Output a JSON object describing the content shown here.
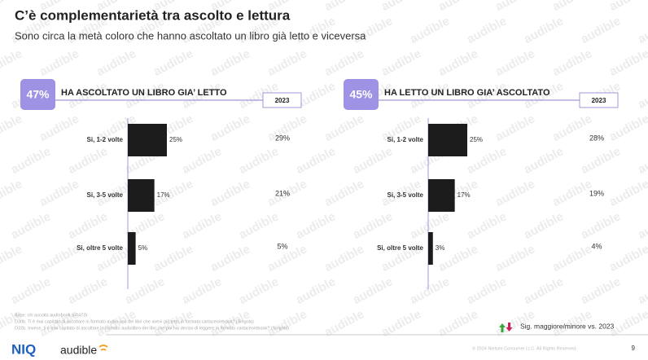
{
  "title": "C’è complementarietà tra ascolto e lettura",
  "subtitle": "Sono circa la metà coloro che hanno ascoltato un libro già letto e viceversa",
  "watermark": "audible",
  "chart_data": [
    {
      "type": "bar",
      "badge": "47%",
      "title": "HA ASCOLTATO UN LIBRO GIA’ LETTO",
      "categories": [
        "Si, 1-2 volte",
        "Si, 3-5 volte",
        "Si, oltre 5 volte"
      ],
      "values": [
        25,
        17,
        5
      ],
      "value_labels": [
        "25%",
        "17%",
        "5%"
      ],
      "color": "#1c1c1c",
      "comparison_header": "2023",
      "comparison_values": [
        "29%",
        "21%",
        "5%"
      ]
    },
    {
      "type": "bar",
      "badge": "45%",
      "title": "HA LETTO UN LIBRO GIA’ ASCOLTATO",
      "categories": [
        "Si, 1-2 volte",
        "Si, 3-5 volte",
        "Si, oltre 5 volte"
      ],
      "values": [
        25,
        17,
        3
      ],
      "value_labels": [
        "25%",
        "17%",
        "3%"
      ],
      "color": "#1c1c1c",
      "comparison_header": "2023",
      "comparison_values": [
        "28%",
        "19%",
        "4%"
      ]
    }
  ],
  "footnotes": [
    "Base: chi ascolta audiobook (n=473)",
    "D30b. Ti è mai capitato di ascoltare in formato audio uno dei libri che avevi già letto in formato cartaceo/ebook? (Singola)",
    "D32b. Invece, ti è mai capitato di ascoltare in formato audiolibro dei libri che poi hai deciso di leggere in formato cartaceo/ebook? (Singola)"
  ],
  "significance_note": "Sig. maggiore/minore vs. 2023",
  "logo": {
    "brand": "NIQ",
    "partner": "audible"
  },
  "copyright": "© 2024 Nielsen Consumer LLC. All Rights Reserved.",
  "page_number": "9"
}
